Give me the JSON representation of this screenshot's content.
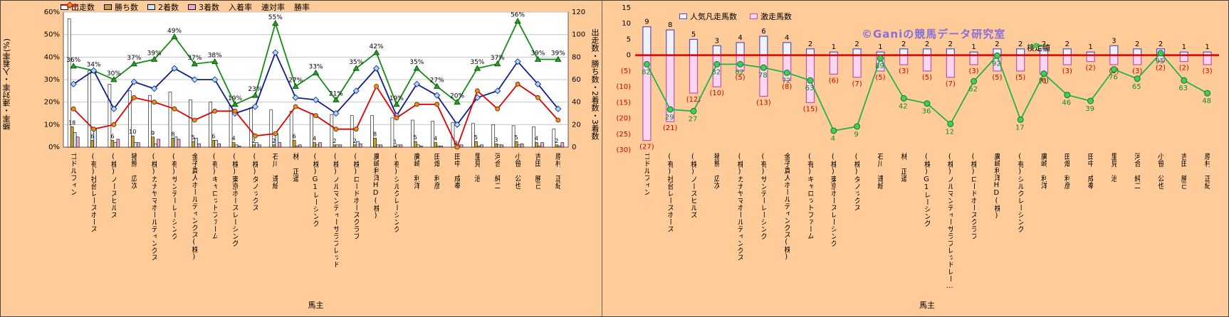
{
  "colors": {
    "background": "#FFCC99",
    "plot_bg": "#FFFFFF",
    "grid": "#C6C6C6",
    "zero_line": "#DD0000",
    "negative_label": "#CC0000",
    "green_label": "#0E8A30",
    "watermark": "#8A6FD6"
  },
  "left_chart": {
    "y_left_title": "勝率・連対率・入着率(%)",
    "y_right_title": "出走数・勝ち数・2着数・3着数",
    "x_title": "馬主",
    "y_left_ticks": [
      "0%",
      "10%",
      "20%",
      "30%",
      "40%",
      "50%",
      "60%"
    ],
    "y_right_ticks": [
      "0",
      "20",
      "40",
      "60",
      "80",
      "100",
      "120"
    ],
    "legend": [
      {
        "label": "出走数",
        "swatch": "bar",
        "fill": "#FFFFFF",
        "stroke": "#000000"
      },
      {
        "label": "勝ち数",
        "swatch": "bar",
        "fill": "#C9A227",
        "stroke": "#000000"
      },
      {
        "label": "2着数",
        "swatch": "bar",
        "fill": "#CCE8F4",
        "stroke": "#000000"
      },
      {
        "label": "3着数",
        "swatch": "bar",
        "fill": "#F2A6C8",
        "stroke": "#000000"
      },
      {
        "label": "入着率",
        "swatch": "line-triangle",
        "color": "#168A16",
        "marker_fill": "#1FA01F"
      },
      {
        "label": "連対率",
        "swatch": "line-diamond",
        "color": "#101C8C",
        "marker_fill": "#A8DCF0"
      },
      {
        "label": "勝率",
        "swatch": "line-circle",
        "color": "#E00000",
        "marker_fill": "#F08A1E"
      }
    ]
  },
  "right_chart": {
    "x_title": "馬主",
    "watermark": "©Ganiの競馬データ研究室",
    "y_ticks": [
      {
        "v": 15,
        "label": "15"
      },
      {
        "v": 10,
        "label": "10"
      },
      {
        "v": 5,
        "label": "5"
      },
      {
        "v": 0,
        "label": "0"
      },
      {
        "v": -5,
        "label": "(5)"
      },
      {
        "v": -10,
        "label": "(10)"
      },
      {
        "v": -15,
        "label": "(15)"
      },
      {
        "v": -20,
        "label": "(20)"
      },
      {
        "v": -25,
        "label": "(25)"
      },
      {
        "v": -30,
        "label": "(30)"
      }
    ],
    "legend_bars": [
      {
        "label": "人気凡走馬数",
        "swatch": "bar",
        "fill": "#F2F2FF",
        "stroke": "#5050C8"
      },
      {
        "label": "激走馬数",
        "swatch": "bar",
        "fill": "#FBD7EF",
        "stroke": "#C050B0"
      }
    ],
    "legend_line": [
      {
        "label": "検定値",
        "swatch": "line-circle",
        "color": "#22B14C",
        "marker_fill": "#44CC55"
      }
    ]
  },
  "chart_data": [
    {
      "id": "owner-performance",
      "type": "bar+line",
      "xlabel": "馬主",
      "ylabel_left": "勝率・連対率・入着率(%)",
      "ylabel_right": "出走数・勝ち数・2着数・3着数",
      "ylim_left": [
        0,
        60
      ],
      "ylim_right": [
        0,
        120
      ],
      "grid": true,
      "categories": [
        "ゴドルフィン",
        "(有)社台レースホース",
        "(株)ノースヒルズ",
        "猪熊 広次",
        "(株)カナヤマホールディングス",
        "(有)サンデーレーシング",
        "金子真人ホールディングス(株)",
        "(有)キャロットファーム",
        "(株)東京ホースレーシング",
        "(株)ダノックス",
        "石川 達絵",
        "林 正道",
        "(株)G1レーシング",
        "(株)ノルマンディーサラブレッド",
        "(株)ロードホースクラブ",
        "廣崎利洋HD(株)",
        "(有)シルクレーシング",
        "廣崎 利洋",
        "田畑 利彦",
        "田中 成奉",
        "里見 治",
        "河合 純二",
        "小笹 公也",
        "吉田 勝己",
        "原村 正紀"
      ],
      "series": [
        {
          "key": "starts",
          "name": "出走数",
          "type": "bar",
          "axis": "right",
          "fill": "#FFFFFF",
          "values": [
            114,
            68,
            56,
            50,
            46,
            49,
            42,
            40,
            37,
            35,
            33,
            32,
            30,
            29,
            28,
            28,
            26,
            24,
            23,
            22,
            21,
            20,
            19,
            18,
            16
          ]
        },
        {
          "key": "wins",
          "name": "勝ち数",
          "type": "bar",
          "axis": "right",
          "fill": "#C9A227",
          "values": [
            18,
            6,
            6,
            10,
            9,
            8,
            5,
            6,
            4,
            2,
            2,
            6,
            4,
            2,
            2,
            8,
            1,
            5,
            4,
            0,
            5,
            3,
            5,
            4,
            2
          ]
        },
        {
          "key": "seconds",
          "name": "2着数",
          "type": "bar",
          "axis": "right",
          "fill": "#CCE8F4",
          "values": [
            13,
            17,
            4,
            4,
            3,
            9,
            8,
            6,
            2,
            4,
            12,
            1,
            2,
            2,
            5,
            2,
            2,
            2,
            1,
            2,
            1,
            2,
            2,
            1,
            1
          ]
        },
        {
          "key": "thirds",
          "name": "3着数",
          "type": "bar",
          "axis": "right",
          "fill": "#F2A6C8",
          "values": [
            9,
            0,
            7,
            4,
            7,
            7,
            3,
            3,
            1,
            2,
            4,
            2,
            4,
            2,
            3,
            2,
            2,
            1,
            1,
            2,
            2,
            2,
            3,
            4,
            4
          ]
        },
        {
          "key": "place-rate",
          "name": "入着率",
          "type": "line",
          "axis": "left",
          "color": "#168A16",
          "marker": "triangle",
          "marker_fill": "#1FA01F",
          "show_labels": true,
          "values": [
            36,
            34,
            30,
            37,
            39,
            49,
            37,
            38,
            19,
            23,
            55,
            27,
            33,
            21,
            35,
            42,
            19,
            35,
            27,
            20,
            35,
            37,
            56,
            39,
            39
          ]
        },
        {
          "key": "quinella-rate",
          "name": "連対率",
          "type": "line",
          "axis": "left",
          "color": "#101C8C",
          "marker": "diamond",
          "marker_fill": "#A8DCF0",
          "show_labels": false,
          "values": [
            28,
            34,
            17,
            29,
            26,
            35,
            30,
            30,
            15,
            18,
            42,
            22,
            21,
            15,
            25,
            35,
            14,
            28,
            23,
            10,
            22,
            25,
            38,
            28,
            17
          ]
        },
        {
          "key": "win-rate",
          "name": "勝率",
          "type": "line",
          "axis": "left",
          "color": "#E00000",
          "marker": "circle",
          "marker_fill": "#F08A1E",
          "show_labels": false,
          "values": [
            17,
            8,
            10,
            22,
            20,
            17,
            12,
            16,
            16,
            5,
            6,
            18,
            14,
            8,
            8,
            27,
            13,
            19,
            19,
            0,
            25,
            17,
            28,
            22,
            12
          ]
        }
      ]
    },
    {
      "id": "popularity-upset-test",
      "type": "bar+line",
      "xlabel": "馬主",
      "ylim": [
        -30,
        15
      ],
      "grid": false,
      "zero_line_color": "#DD0000",
      "categories": [
        "ゴドルフィン",
        "(有)社台レースホース",
        "(株)ノースヒルズ",
        "猪熊 広次",
        "(株)カナヤマホールディングス",
        "(有)サンデーレーシング",
        "金子真人ホールディングス(株)",
        "(有)キャロットファーム",
        "(株)東京ホースレーシング",
        "(株)ダノックス",
        "石川 達絵",
        "林 正道",
        "(株)G1レーシング",
        "(株)ノルマンディーサラブレッドレー…",
        "(株)ロードホースクラブ",
        "廣崎利洋HD(株)",
        "(有)シルクレーシング",
        "廣崎 利洋",
        "田畑 利彦",
        "田中 成奉",
        "里見 治",
        "河合 純二",
        "小笹 公也",
        "吉田 勝己",
        "原村 正紀"
      ],
      "series": [
        {
          "key": "unpopular-flops",
          "name": "人気凡走馬数",
          "type": "bar",
          "sign": "positive",
          "fill": "#F2F2FF",
          "stroke": "#5050C8",
          "values": [
            9,
            8,
            5,
            3,
            4,
            6,
            4,
            2,
            1,
            2,
            1,
            2,
            2,
            2,
            1,
            2,
            2,
            2,
            2,
            1,
            3,
            2,
            2,
            1,
            1
          ]
        },
        {
          "key": "upset-runners",
          "name": "激走馬数",
          "type": "bar",
          "sign": "negative",
          "fill": "#FBD7EF",
          "stroke": "#C050B0",
          "values": [
            27,
            21,
            12,
            10,
            5,
            13,
            8,
            15,
            6,
            7,
            5,
            3,
            5,
            7,
            3,
            5,
            5,
            6,
            3,
            2,
            3,
            3,
            2,
            2,
            3
          ]
        },
        {
          "key": "test-statistic",
          "name": "検定値",
          "type": "line",
          "color": "#22B14C",
          "marker": "circle",
          "marker_fill": "#44CC55",
          "scale": [
            0,
            100
          ],
          "values": [
            82,
            29,
            27,
            82,
            82,
            78,
            72,
            63,
            4,
            9,
            89,
            42,
            36,
            12,
            62,
            92,
            17,
            71,
            46,
            39,
            76,
            65,
            95,
            63,
            48
          ]
        }
      ]
    }
  ]
}
